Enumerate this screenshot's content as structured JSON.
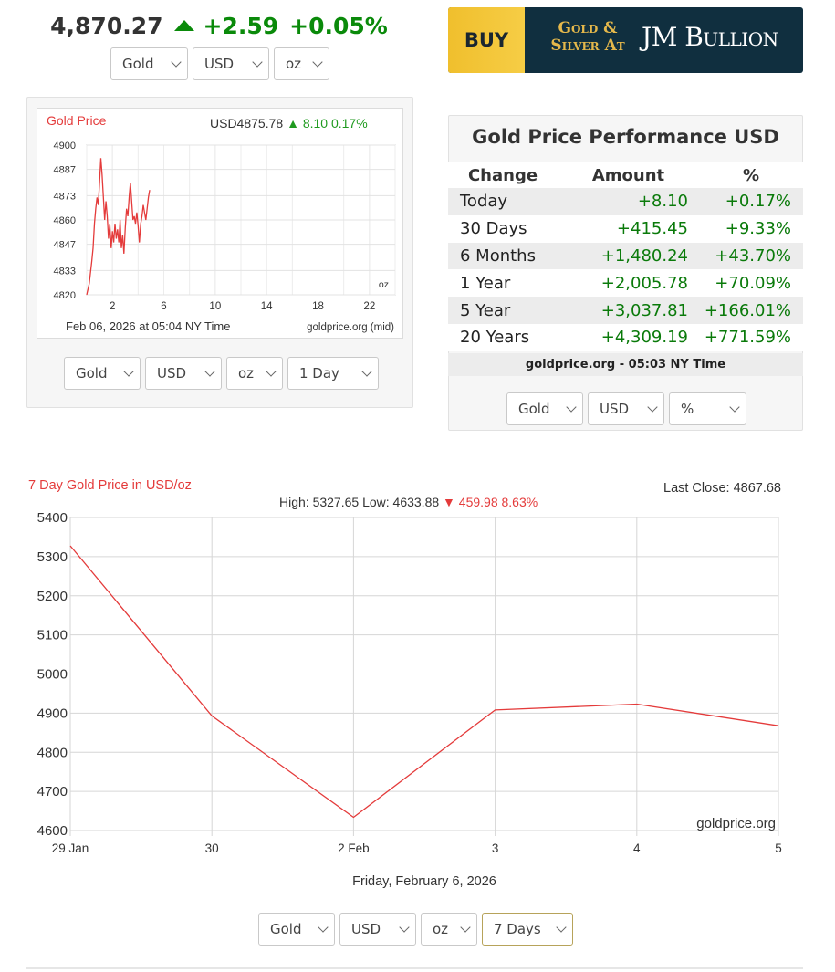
{
  "ticker": {
    "price": "4,870.27",
    "change": "+2.59",
    "percent": "+0.05%"
  },
  "top_selects": [
    "Gold",
    "USD",
    "oz"
  ],
  "banner": {
    "buy": "BUY",
    "line1": "Gold &",
    "line2": "Silver At",
    "brand": "JM Bullion"
  },
  "mini_chart": {
    "title": "Gold Price",
    "usd_price": "USD4875.78",
    "change": "8.10 0.17%",
    "unit": "oz",
    "timestamp": "Feb 06, 2026 at 05:04 NY Time",
    "source": "goldprice.org (mid)",
    "y_ticks": [
      "4900",
      "4887",
      "4873",
      "4860",
      "4847",
      "4833",
      "4820"
    ],
    "x_ticks": [
      "2",
      "6",
      "10",
      "14",
      "18",
      "22"
    ],
    "selects": [
      "Gold",
      "USD",
      "oz",
      "1 Day"
    ]
  },
  "performance": {
    "title": "Gold Price Performance USD",
    "headers": [
      "Change",
      "Amount",
      "%"
    ],
    "rows": [
      {
        "label": "Today",
        "amount": "+8.10",
        "pct": "+0.17%"
      },
      {
        "label": "30 Days",
        "amount": "+415.45",
        "pct": "+9.33%"
      },
      {
        "label": "6 Months",
        "amount": "+1,480.24",
        "pct": "+43.70%"
      },
      {
        "label": "1 Year",
        "amount": "+2,005.78",
        "pct": "+70.09%"
      },
      {
        "label": "5 Year",
        "amount": "+3,037.81",
        "pct": "+166.01%"
      },
      {
        "label": "20 Years",
        "amount": "+4,309.19",
        "pct": "+771.59%"
      }
    ],
    "footer": "goldprice.org - 05:03 NY Time",
    "selects": [
      "Gold",
      "USD",
      "%"
    ]
  },
  "big_chart": {
    "title": "7 Day Gold Price in USD/oz",
    "last_close": "Last Close: 4867.68",
    "high_low": "High: 5327.65 Low: 4633.88",
    "change": "459.98 8.63%",
    "watermark": "goldprice.org",
    "date_caption": "Friday, February 6, 2026",
    "selects": [
      "Gold",
      "USD",
      "oz",
      "7 Days"
    ]
  },
  "colors": {
    "red": "#e43b3b",
    "green": "#0a7a0a",
    "banner_navy": "#102f3f",
    "banner_gold": "#f0bf2d"
  },
  "chart_data": [
    {
      "type": "line",
      "title": "Gold Price",
      "x_unit": "hour of day (NY)",
      "ylim": [
        4820,
        4900
      ],
      "x_ticks": [
        2,
        6,
        10,
        14,
        18,
        22
      ],
      "series": [
        {
          "values": [
            [
              0.0,
              4820
            ],
            [
              0.2,
              4826
            ],
            [
              0.4,
              4838
            ],
            [
              0.5,
              4845
            ],
            [
              0.6,
              4858
            ],
            [
              0.7,
              4866
            ],
            [
              0.8,
              4872
            ],
            [
              0.9,
              4868
            ],
            [
              1.0,
              4880
            ],
            [
              1.1,
              4893
            ],
            [
              1.2,
              4884
            ],
            [
              1.3,
              4872
            ],
            [
              1.4,
              4860
            ],
            [
              1.5,
              4870
            ],
            [
              1.6,
              4862
            ],
            [
              1.7,
              4850
            ],
            [
              1.8,
              4858
            ],
            [
              1.9,
              4845
            ],
            [
              2.0,
              4854
            ],
            [
              2.1,
              4848
            ],
            [
              2.2,
              4858
            ],
            [
              2.3,
              4850
            ],
            [
              2.4,
              4855
            ],
            [
              2.5,
              4848
            ],
            [
              2.6,
              4860
            ],
            [
              2.7,
              4845
            ],
            [
              2.8,
              4852
            ],
            [
              2.9,
              4842
            ],
            [
              3.0,
              4856
            ],
            [
              3.1,
              4866
            ],
            [
              3.2,
              4862
            ],
            [
              3.3,
              4872
            ],
            [
              3.4,
              4880
            ],
            [
              3.5,
              4870
            ],
            [
              3.6,
              4860
            ],
            [
              3.7,
              4862
            ],
            [
              3.8,
              4858
            ],
            [
              3.9,
              4864
            ],
            [
              4.0,
              4857
            ],
            [
              4.1,
              4848
            ],
            [
              4.2,
              4858
            ],
            [
              4.3,
              4862
            ],
            [
              4.4,
              4868
            ],
            [
              4.5,
              4864
            ],
            [
              4.6,
              4860
            ],
            [
              4.7,
              4866
            ],
            [
              4.8,
              4872
            ],
            [
              4.9,
              4876
            ]
          ]
        }
      ]
    },
    {
      "type": "line",
      "title": "7 Day Gold Price in USD/oz",
      "categories": [
        "29 Jan",
        "30",
        "2 Feb",
        "3",
        "4",
        "5"
      ],
      "ylim": [
        4600,
        5400
      ],
      "y_ticks": [
        4600,
        4700,
        4800,
        4900,
        5000,
        5100,
        5200,
        5300,
        5400
      ],
      "series": [
        {
          "values": [
            5327.65,
            4893,
            4633.88,
            4908,
            4923,
            4867.68
          ]
        }
      ],
      "grid": true
    }
  ]
}
